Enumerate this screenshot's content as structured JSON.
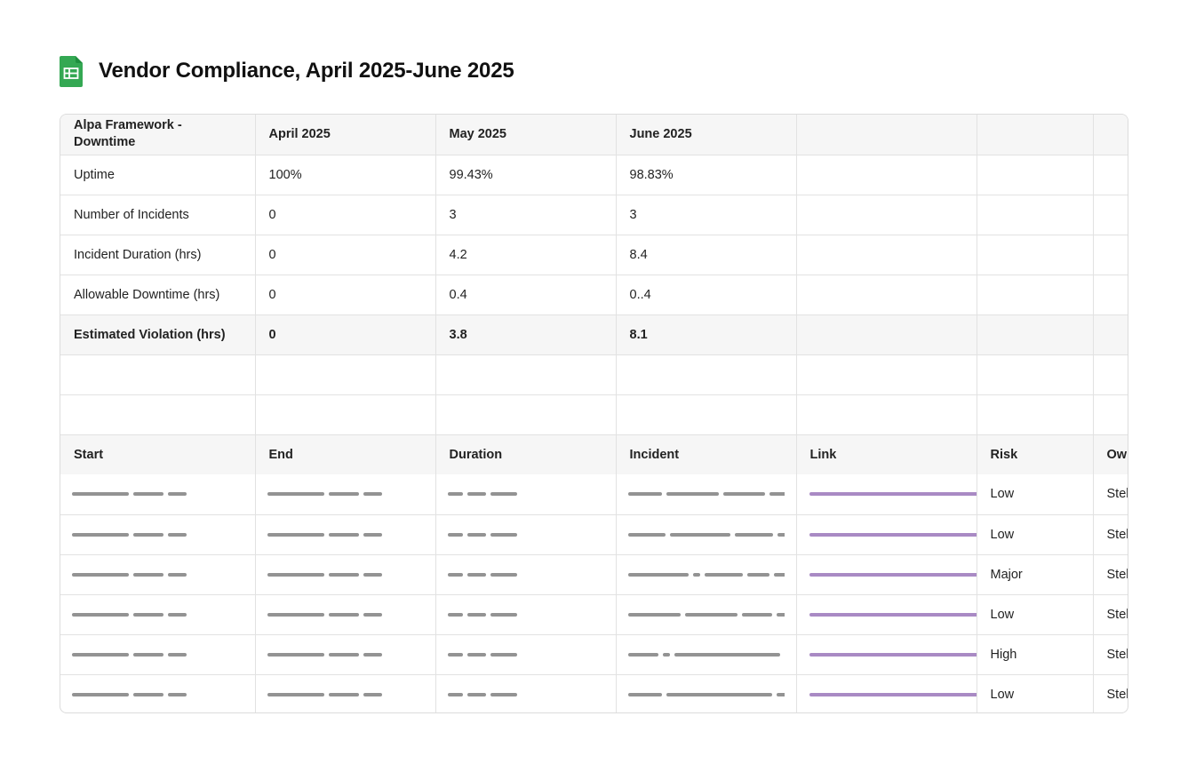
{
  "document": {
    "title": "Vendor Compliance, April 2025-June 2025",
    "icon": "spreadsheet-icon",
    "icon_color": "#34a853"
  },
  "summary_table": {
    "header": [
      "Alpa Framework - Downtime",
      "April 2025",
      "May 2025",
      "June 2025"
    ],
    "rows": [
      {
        "label": "Uptime",
        "values": [
          "100%",
          "99.43%",
          "98.83%"
        ]
      },
      {
        "label": "Number of Incidents",
        "values": [
          "0",
          "3",
          "3"
        ]
      },
      {
        "label": "Incident Duration (hrs)",
        "values": [
          "0",
          "4.2",
          "8.4"
        ]
      },
      {
        "label": "Allowable Downtime (hrs)",
        "values": [
          "0",
          "0.4",
          "0..4"
        ]
      },
      {
        "label": "Estimated Violation (hrs)",
        "values": [
          "0",
          "3.8",
          "8.1"
        ]
      }
    ]
  },
  "incident_table": {
    "header": [
      "Start",
      "End",
      "Duration",
      "Incident",
      "Link",
      "Risk",
      "Ow"
    ],
    "rows": [
      {
        "risk": "Low",
        "owner": "Stel"
      },
      {
        "risk": "Low",
        "owner": "Stel"
      },
      {
        "risk": "Major",
        "owner": "Stel"
      },
      {
        "risk": "Low",
        "owner": "Stel"
      },
      {
        "risk": "High",
        "owner": "Stel"
      },
      {
        "risk": "Low",
        "owner": "Stel"
      }
    ]
  },
  "colors": {
    "redacted_text": "#939393",
    "redacted_link": "#a98ac4",
    "header_fill": "#f6f6f6"
  }
}
